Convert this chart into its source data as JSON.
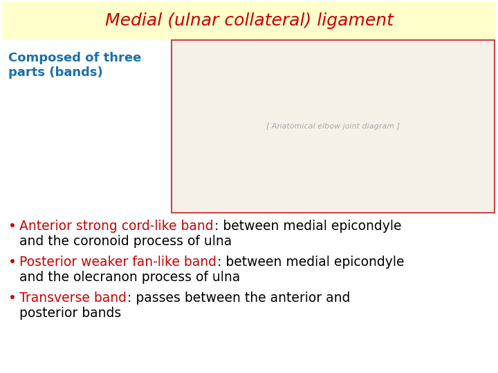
{
  "background_color": "#ffffff",
  "title_text": "Medial (ulnar collateral) ligament",
  "title_color": "#cc0000",
  "title_bg_color": "#ffffcc",
  "title_fontsize": 18,
  "subtitle_text": "Composed of three\nparts (bands)",
  "subtitle_color": "#1a6faf",
  "subtitle_fontsize": 13,
  "bullet_items": [
    {
      "colored_text": "Anterior strong cord-like band",
      "colored_color": "#cc0000",
      "rest_line1": ": between medial epicondyle",
      "rest_line2": "and the coronoid process of ulna",
      "rest_color": "#000000"
    },
    {
      "colored_text": "Posterior weaker fan-like band",
      "colored_color": "#cc0000",
      "rest_line1": ": between medial epicondyle",
      "rest_line2": "and the olecranon process of ulna",
      "rest_color": "#000000"
    },
    {
      "colored_text": "Transverse band",
      "colored_color": "#cc0000",
      "rest_line1": ": passes between the anterior and",
      "rest_line2": "posterior bands",
      "rest_color": "#000000"
    }
  ],
  "bullet_fontsize": 13.5,
  "bullet_color": "#cc0000",
  "bullet_char": "•"
}
